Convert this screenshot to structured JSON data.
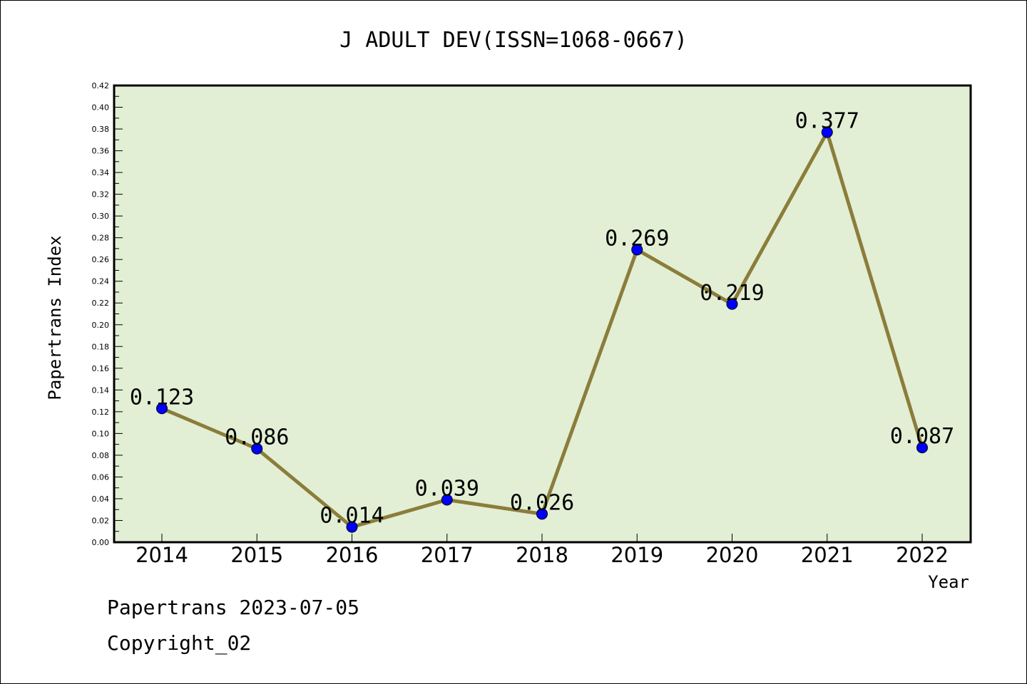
{
  "chart_data": {
    "type": "line",
    "title": "J ADULT DEV(ISSN=1068-0667)",
    "xlabel": "Year",
    "ylabel": "Papertrans Index",
    "categories": [
      "2014",
      "2015",
      "2016",
      "2017",
      "2018",
      "2019",
      "2020",
      "2021",
      "2022"
    ],
    "series": [
      {
        "values": [
          0.123,
          0.086,
          0.014,
          0.039,
          0.026,
          0.269,
          0.219,
          0.377,
          0.087
        ]
      }
    ],
    "data_labels": [
      "0.123",
      "0.086",
      "0.014",
      "0.039",
      "0.026",
      "0.269",
      "0.219",
      "0.377",
      "0.087"
    ],
    "ylim": [
      0,
      0.42
    ],
    "y_ticks": [
      "0.00",
      "0.02",
      "0.04",
      "0.06",
      "0.08",
      "0.10",
      "0.12",
      "0.14",
      "0.16",
      "0.18",
      "0.20",
      "0.22",
      "0.24",
      "0.26",
      "0.28",
      "0.30",
      "0.32",
      "0.34",
      "0.36",
      "0.38",
      "0.40",
      "0.42"
    ],
    "grid": false,
    "colors": {
      "plot_background": "#e2efd5",
      "line": "#8b7d3a",
      "marker": "#0000ff"
    }
  },
  "footer": {
    "stamp": "Papertrans 2023-07-05",
    "copyright": "Copyright_02"
  }
}
